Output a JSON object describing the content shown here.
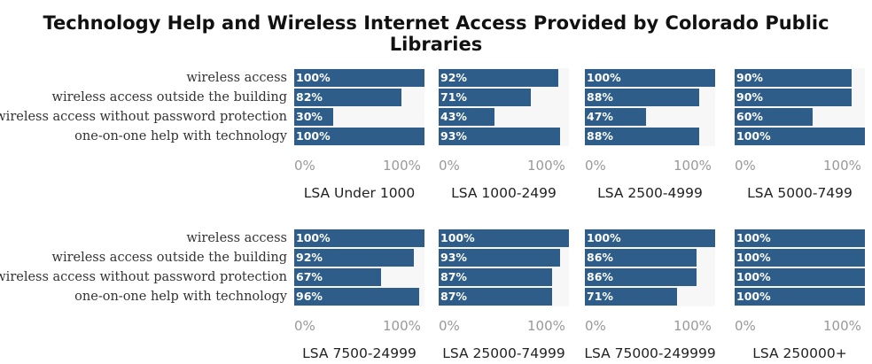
{
  "chart_data": {
    "type": "bar",
    "title": "Technology Help and Wireless Internet Access Provided by Colorado Public Libraries",
    "categories": [
      "wireless access",
      "wireless access outside the building",
      "wireless access without password protection",
      "one-on-one help with technology"
    ],
    "xlim": [
      0,
      100
    ],
    "x_ticks": [
      "0%",
      "100%"
    ],
    "panels": [
      {
        "name": "LSA Under 1000",
        "values": [
          100,
          82,
          30,
          100
        ],
        "labels": [
          "100%",
          "82%",
          "30%",
          "100%"
        ]
      },
      {
        "name": "LSA 1000-2499",
        "values": [
          92,
          71,
          43,
          93
        ],
        "labels": [
          "92%",
          "71%",
          "43%",
          "93%"
        ]
      },
      {
        "name": "LSA 2500-4999",
        "values": [
          100,
          88,
          47,
          88
        ],
        "labels": [
          "100%",
          "88%",
          "47%",
          "88%"
        ]
      },
      {
        "name": "LSA 5000-7499",
        "values": [
          90,
          90,
          60,
          100
        ],
        "labels": [
          "90%",
          "90%",
          "60%",
          "100%"
        ]
      },
      {
        "name": "LSA 7500-24999",
        "values": [
          100,
          92,
          67,
          96
        ],
        "labels": [
          "100%",
          "92%",
          "67%",
          "96%"
        ]
      },
      {
        "name": "LSA 25000-74999",
        "values": [
          100,
          93,
          87,
          87
        ],
        "labels": [
          "100%",
          "93%",
          "87%",
          "87%"
        ]
      },
      {
        "name": "LSA 75000-249999",
        "values": [
          100,
          86,
          86,
          71
        ],
        "labels": [
          "100%",
          "86%",
          "86%",
          "71%"
        ]
      },
      {
        "name": "LSA 250000+",
        "values": [
          100,
          100,
          100,
          100
        ],
        "labels": [
          "100%",
          "100%",
          "100%",
          "100%"
        ]
      }
    ],
    "bar_color": "#2d5d88",
    "grid": false,
    "legend": "none"
  }
}
